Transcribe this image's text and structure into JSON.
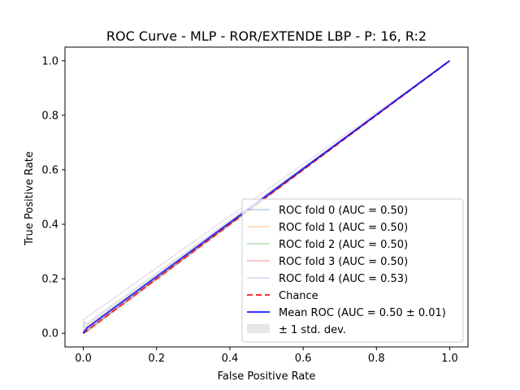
{
  "chart_data": {
    "type": "line",
    "title": "ROC Curve - MLP - ROR/EXTENDE LBP - P: 16, R:2",
    "xlabel": "False Positive Rate",
    "ylabel": "True Positive Rate",
    "xlim": [
      -0.05,
      1.05
    ],
    "ylim": [
      -0.05,
      1.05
    ],
    "xticks": [
      "0.0",
      "0.2",
      "0.4",
      "0.6",
      "0.8",
      "1.0"
    ],
    "yticks": [
      "0.0",
      "0.2",
      "0.4",
      "0.6",
      "0.8",
      "1.0"
    ],
    "grid": false,
    "legend_position": "lower-right",
    "series": [
      {
        "name": "ROC fold 0 (AUC = 0.50)",
        "color": "#1f77b4",
        "style": "solid",
        "x": [
          0,
          0.01,
          1
        ],
        "y": [
          0,
          0.01,
          1
        ]
      },
      {
        "name": "ROC fold 1 (AUC = 0.50)",
        "color": "#ff7f0e",
        "style": "solid",
        "x": [
          0,
          0.01,
          1
        ],
        "y": [
          0,
          0.01,
          1
        ]
      },
      {
        "name": "ROC fold 2 (AUC = 0.50)",
        "color": "#2ca02c",
        "style": "solid",
        "x": [
          0,
          0.01,
          1
        ],
        "y": [
          0,
          0.01,
          1
        ]
      },
      {
        "name": "ROC fold 3 (AUC = 0.50)",
        "color": "#d62728",
        "style": "solid",
        "x": [
          0,
          0.01,
          1
        ],
        "y": [
          0,
          0.01,
          1
        ]
      },
      {
        "name": "ROC fold 4 (AUC = 0.53)",
        "color": "#9467bd",
        "style": "solid",
        "x": [
          0,
          0.0,
          1
        ],
        "y": [
          0,
          0.05,
          1
        ]
      },
      {
        "name": "Chance",
        "color": "#ff0000",
        "style": "dashed",
        "x": [
          0,
          1
        ],
        "y": [
          0,
          1
        ]
      },
      {
        "name": "Mean ROC (AUC = 0.50 ± 0.01)",
        "color": "#0000ff",
        "style": "solid",
        "x": [
          0,
          0.01,
          1
        ],
        "y": [
          0,
          0.02,
          1
        ]
      }
    ],
    "std_band": {
      "name": "± 1 std. dev.",
      "color": "#808080",
      "x": [
        0,
        0.01,
        1
      ],
      "upper": [
        0.05,
        0.04,
        1
      ],
      "lower": [
        0,
        0.0,
        1
      ]
    }
  }
}
